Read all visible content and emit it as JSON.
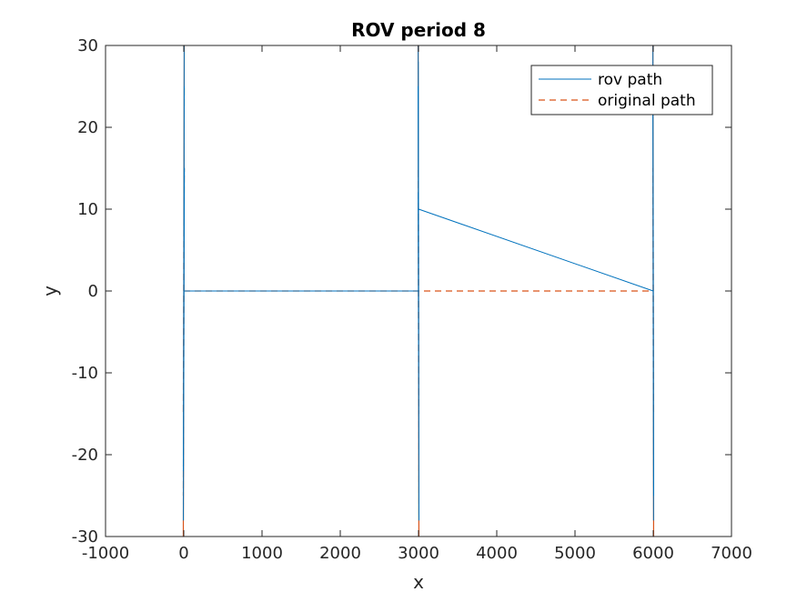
{
  "chart_data": {
    "type": "line",
    "title": "ROV period 8",
    "xlabel": "x",
    "ylabel": "y",
    "xlim": [
      -1000,
      7000
    ],
    "ylim": [
      -30,
      30
    ],
    "xticks": [
      -1000,
      0,
      1000,
      2000,
      3000,
      4000,
      5000,
      6000,
      7000
    ],
    "yticks": [
      -30,
      -20,
      -10,
      0,
      10,
      20,
      30
    ],
    "xtick_labels": [
      "-1000",
      "0",
      "1000",
      "2000",
      "3000",
      "4000",
      "5000",
      "6000",
      "7000"
    ],
    "ytick_labels": [
      "-30",
      "-20",
      "-10",
      "0",
      "10",
      "20",
      "30"
    ],
    "grid": false,
    "legend_position": "top-right",
    "series": [
      {
        "name": "rov path",
        "color": "#0072BD",
        "style": "solid",
        "x": [
          0,
          5,
          -5,
          8,
          -4,
          6,
          -6,
          3,
          0,
          3000,
          2995,
          3006,
          2994,
          3005,
          2996,
          3004,
          2998,
          3000,
          3002,
          6000,
          5996,
          6004,
          5995,
          6006,
          5996,
          6003,
          6000
        ],
        "y": [
          0,
          30,
          -28,
          15,
          -20,
          25,
          -22,
          10,
          0,
          0,
          12,
          -28,
          25,
          -20,
          30,
          -15,
          28,
          10,
          10,
          0,
          28,
          -28,
          22,
          -25,
          30,
          -20,
          0
        ]
      },
      {
        "name": "original path",
        "color": "#D95319",
        "style": "dashed",
        "x": [
          0,
          6,
          -6,
          6,
          -6,
          6,
          -6,
          0,
          3000,
          2995,
          3005,
          2995,
          3005,
          2995,
          3005,
          3000,
          6000,
          5995,
          6005,
          5995,
          6005,
          5995,
          6005,
          6000
        ],
        "y": [
          0,
          30,
          -30,
          15,
          -15,
          25,
          -25,
          0,
          0,
          30,
          -30,
          15,
          -15,
          28,
          -28,
          0,
          0,
          30,
          -30,
          15,
          -15,
          28,
          -28,
          0
        ]
      }
    ]
  }
}
